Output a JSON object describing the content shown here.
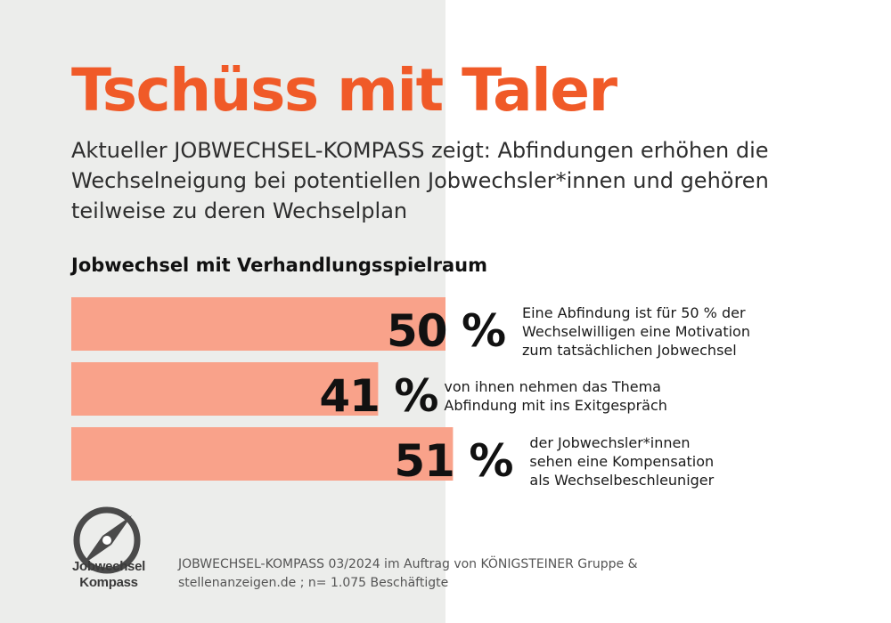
{
  "colors": {
    "accent": "#f05a28",
    "bar": "#f9a28a",
    "panel": "#ecedeb"
  },
  "header": {
    "title": "Tschüss mit Taler",
    "subtitle": "Aktueller JOBWECHSEL-KOMPASS zeigt: Abfindungen erhöhen die Wechselneigung bei potentiellen Jobwechsler*innen und gehören teilweise zu deren Wechselplan"
  },
  "section_title": "Jobwechsel mit Verhandlungsspielraum",
  "chart_data": {
    "type": "bar",
    "orientation": "horizontal",
    "title": "Jobwechsel mit Verhandlungsspielraum",
    "unit": "%",
    "xlim": [
      0,
      100
    ],
    "grid": false,
    "categories": [
      "Eine Abfindung ist für 50 % der\nWechselwilligen eine Motivation\nzum tatsächlichen Jobwechsel",
      "von ihnen nehmen das Thema\nAbfindung mit ins Exitgespräch",
      "der Jobwechsler*innen\nsehen eine Kompensation\nals Wechselbeschleuniger"
    ],
    "values": [
      50,
      41,
      51
    ],
    "value_labels": [
      "50 %",
      "41 %",
      "51 %"
    ]
  },
  "logo": {
    "icon": "compass-icon",
    "label": "Jobwechsel\nKompass"
  },
  "source": "JOBWECHSEL-KOMPASS 03/2024 im Auftrag von KÖNIGSTEINER Gruppe & stellenanzeigen.de ; n= 1.075 Beschäftigte"
}
